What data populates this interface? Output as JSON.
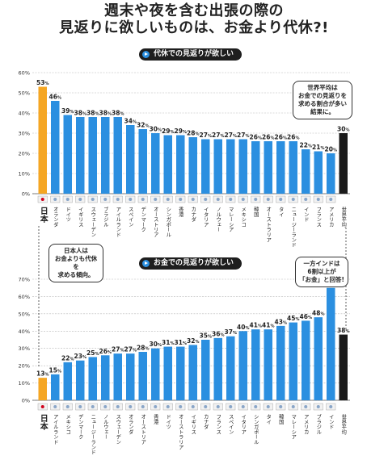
{
  "title": {
    "line1": "週末や夜を含む出張の際の",
    "line2": "見返りに欲しいものは、お金より代休?!"
  },
  "colors": {
    "japan": "#f5a623",
    "world": "#1a1a1a",
    "bars": "#2b8fe0",
    "grid": "#b8b8b8"
  },
  "notes": {
    "world": [
      "世界平均は",
      "お金での見返りを",
      "求める割合が多い",
      "結果に。"
    ],
    "japan": [
      "日本人は",
      "お金よりも代休を",
      "求める傾向。"
    ],
    "india": [
      "一方インドは",
      "6割以上が",
      "「お金」と回答!"
    ]
  },
  "chart_data": [
    {
      "type": "bar",
      "title": "代休での見返りが欲しい",
      "ylim": [
        0,
        60
      ],
      "yticks": [
        "0%",
        "10%",
        "20%",
        "30%",
        "40%",
        "50%",
        "60%"
      ],
      "value_suffix": "%",
      "categories": [
        "日本",
        "オランダ",
        "ドイツ",
        "イギリス",
        "スウェーデン",
        "ブラジル",
        "アイルランド",
        "スペイン",
        "デンマーク",
        "オーストリア",
        "シンガポール",
        "香港",
        "カナダ",
        "イタリア",
        "ノルウェー",
        "マレーシア",
        "メキシコ",
        "韓国",
        "オーストラリア",
        "タイ",
        "ニュージーランド",
        "インド",
        "フランス",
        "アメリカ",
        "世界平均"
      ],
      "values": [
        53,
        46,
        39,
        38,
        38,
        38,
        38,
        34,
        32,
        30,
        29,
        29,
        28,
        27,
        27,
        27,
        27,
        26,
        26,
        26,
        26,
        22,
        21,
        20,
        30
      ],
      "grid": true
    },
    {
      "type": "bar",
      "title": "お金での見返りが欲しい",
      "ylim": [
        0,
        70
      ],
      "yticks": [
        "0%",
        "10%",
        "20%",
        "30%",
        "40%",
        "50%",
        "60%",
        "70%"
      ],
      "value_suffix": "%",
      "categories": [
        "日本",
        "アイルランド",
        "メキシコ",
        "デンマーク",
        "ニュージーランド",
        "ノルウェー",
        "スウェーデン",
        "オランダ",
        "オーストリア",
        "香港",
        "ドイツ",
        "オーストラリア",
        "イギリス",
        "カナダ",
        "フランス",
        "スペイン",
        "イタリア",
        "シンガポール",
        "タイ",
        "韓国",
        "マレーシア",
        "アメリカ",
        "ブラジル",
        "インド",
        "世界平均"
      ],
      "values": [
        13,
        15,
        22,
        23,
        25,
        26,
        27,
        27,
        28,
        30,
        31,
        31,
        32,
        35,
        36,
        37,
        40,
        41,
        41,
        43,
        45,
        46,
        48,
        65,
        38
      ],
      "grid": true
    }
  ]
}
